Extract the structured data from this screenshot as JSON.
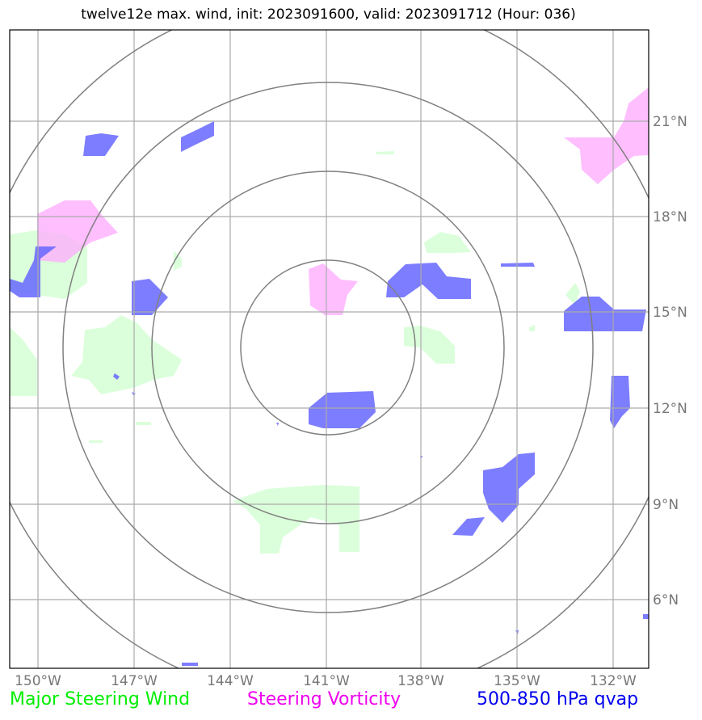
{
  "title": "twelve12e max. wind, init: 2023091600, valid: 2023091712 (Hour: 036)",
  "axes": {
    "lon_labels": [
      "150°W",
      "147°W",
      "144°W",
      "141°W",
      "138°W",
      "135°W",
      "132°W"
    ],
    "lat_labels": [
      "21°N",
      "18°N",
      "15°N",
      "12°N",
      "9°N",
      "6°N"
    ]
  },
  "legend": {
    "wind": "Major Steering Wind",
    "vorticity": "Steering Vorticity",
    "qvap": "500-850 hPa qvap"
  },
  "colors": {
    "wind": "#00ee00",
    "vorticity": "#ee00ee",
    "qvap": "#0000ee",
    "wind_fill": "#ccffcc",
    "vort_fill": "#ffaaff",
    "qvap_fill": "#6666ff",
    "grid": "#aaaaaa",
    "rings": "#808080"
  }
}
